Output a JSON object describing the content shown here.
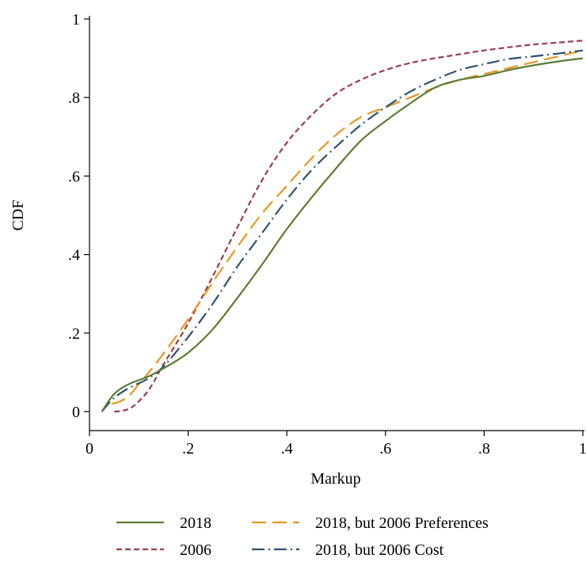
{
  "chart_data": {
    "type": "line",
    "xlabel": "Markup",
    "ylabel": "CDF",
    "xlim": [
      0,
      1
    ],
    "ylim": [
      0,
      1
    ],
    "xticks": [
      {
        "value": 0,
        "label": "0"
      },
      {
        "value": 0.2,
        "label": ".2"
      },
      {
        "value": 0.4,
        "label": ".4"
      },
      {
        "value": 0.6,
        "label": ".6"
      },
      {
        "value": 0.8,
        "label": ".8"
      },
      {
        "value": 1,
        "label": "1"
      }
    ],
    "yticks": [
      {
        "value": 0,
        "label": "0"
      },
      {
        "value": 0.2,
        "label": ".2"
      },
      {
        "value": 0.4,
        "label": ".4"
      },
      {
        "value": 0.6,
        "label": ".6"
      },
      {
        "value": 0.8,
        "label": ".8"
      },
      {
        "value": 1,
        "label": "1"
      }
    ],
    "grid": false,
    "legend_position": "bottom",
    "series": [
      {
        "name": "2018",
        "color": "#5b7d33",
        "style": "solid",
        "x": [
          0.025,
          0.05,
          0.08,
          0.12,
          0.15,
          0.2,
          0.25,
          0.3,
          0.35,
          0.4,
          0.45,
          0.5,
          0.55,
          0.6,
          0.65,
          0.7,
          0.75,
          0.8,
          0.85,
          0.9,
          0.95,
          1.0
        ],
        "y": [
          0.0,
          0.045,
          0.07,
          0.09,
          0.11,
          0.15,
          0.21,
          0.29,
          0.375,
          0.465,
          0.545,
          0.62,
          0.69,
          0.74,
          0.785,
          0.825,
          0.845,
          0.855,
          0.87,
          0.882,
          0.892,
          0.9
        ]
      },
      {
        "name": "2006",
        "color": "#9c3d4a",
        "style": "dash",
        "x": [
          0.05,
          0.07,
          0.09,
          0.12,
          0.15,
          0.2,
          0.25,
          0.3,
          0.35,
          0.4,
          0.45,
          0.5,
          0.55,
          0.6,
          0.65,
          0.7,
          0.75,
          0.8,
          0.85,
          0.9,
          0.95,
          1.0
        ],
        "y": [
          0.0,
          0.003,
          0.015,
          0.055,
          0.12,
          0.225,
          0.345,
          0.47,
          0.59,
          0.685,
          0.755,
          0.81,
          0.845,
          0.87,
          0.888,
          0.9,
          0.91,
          0.92,
          0.928,
          0.935,
          0.94,
          0.945
        ]
      },
      {
        "name": "2018, but 2006 Preferences",
        "color": "#e8961f",
        "style": "longdash",
        "x": [
          0.045,
          0.06,
          0.08,
          0.1,
          0.13,
          0.16,
          0.2,
          0.25,
          0.3,
          0.35,
          0.4,
          0.45,
          0.5,
          0.55,
          0.6,
          0.65,
          0.7,
          0.75,
          0.8,
          0.85,
          0.9,
          0.95,
          1.0
        ],
        "y": [
          0.02,
          0.025,
          0.04,
          0.07,
          0.115,
          0.165,
          0.235,
          0.33,
          0.42,
          0.505,
          0.575,
          0.645,
          0.705,
          0.75,
          0.775,
          0.8,
          0.825,
          0.845,
          0.86,
          0.875,
          0.89,
          0.905,
          0.92
        ]
      },
      {
        "name": "2018, but 2006 Cost",
        "color": "#2e5272",
        "style": "dashdot",
        "x": [
          0.025,
          0.05,
          0.08,
          0.12,
          0.15,
          0.2,
          0.25,
          0.3,
          0.35,
          0.4,
          0.45,
          0.5,
          0.55,
          0.6,
          0.65,
          0.7,
          0.75,
          0.8,
          0.85,
          0.9,
          0.95,
          1.0
        ],
        "y": [
          0.0,
          0.035,
          0.06,
          0.085,
          0.115,
          0.19,
          0.275,
          0.37,
          0.455,
          0.54,
          0.615,
          0.675,
          0.73,
          0.775,
          0.815,
          0.845,
          0.87,
          0.885,
          0.898,
          0.905,
          0.912,
          0.92
        ]
      }
    ]
  }
}
